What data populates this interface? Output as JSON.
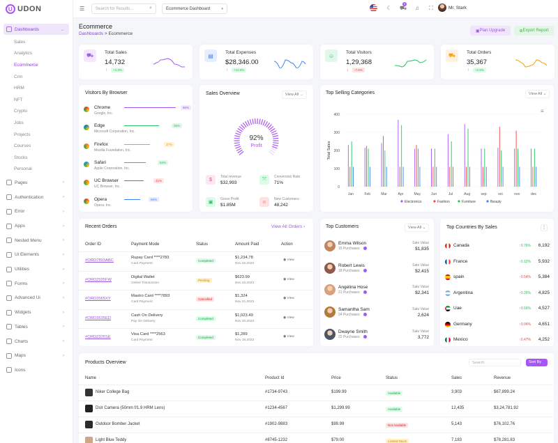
{
  "brand": "UDON",
  "sidebar": {
    "dashboards": "Dashboards",
    "sub": [
      "Sales",
      "Analytics",
      "Ecommerce",
      "Crm",
      "HRM",
      "NFT",
      "Crypto",
      "Jobs",
      "Projects",
      "Courses",
      "Stocks",
      "Personal"
    ],
    "groups": [
      "Pages",
      "Authentication",
      "Error",
      "Apps",
      "Nested Menu",
      "Ui Elements",
      "Utilities",
      "Forms",
      "Advanced Ui",
      "Widgets",
      "Tables",
      "Charts",
      "Maps",
      "Icons"
    ]
  },
  "topbar": {
    "search_placeholder": "Search for Results...",
    "dashboard_select": "Ecommerce Dashboard",
    "cart_count": "5",
    "user": "Mr. Stark"
  },
  "page": {
    "title": "Ecommerce",
    "crumb_root": "Dashboards",
    "crumb_sep": ">",
    "crumb_current": "Ecommerce",
    "plan_upgrade": "Plan Upgrade",
    "export_report": "Export Report"
  },
  "kpis": [
    {
      "label": "Total Sales",
      "value": "14,732",
      "pct": "+4.3%",
      "dir": "↑",
      "accent": "#a855f7"
    },
    {
      "label": "Total Expenses",
      "value": "$28,346.00",
      "pct": "+12.0%",
      "dir": "↑",
      "accent": "#3b82f6"
    },
    {
      "label": "Total Visitors",
      "value": "1,29,368",
      "pct": "-7.6%",
      "dir": "↓",
      "accent": "#22c55e"
    },
    {
      "label": "Total Orders",
      "value": "35,367",
      "pct": "+2.5%",
      "dir": "↑",
      "accent": "#f59e0b"
    }
  ],
  "browsers": {
    "title": "Visitors By Browser",
    "items": [
      {
        "name": "Chrome",
        "company": "Google, Inc.",
        "pct": "86%",
        "color": "#a855f7"
      },
      {
        "name": "Edge",
        "company": "Microsoft Corporation, Inc.",
        "pct": "36%",
        "color": "#22c55e"
      },
      {
        "name": "Firefox",
        "company": "Mozilla Foundation, Inc.",
        "pct": "37%",
        "color": "#f59e0b"
      },
      {
        "name": "Safari",
        "company": "Apple Corporation, Inc.",
        "pct": "53%",
        "color": "#22c55e"
      },
      {
        "name": "UC Browser",
        "company": "UC Browser, Inc.",
        "pct": "41%",
        "color": "#ef4444"
      },
      {
        "name": "Opera",
        "company": "Opera, Inc.",
        "pct": "56%",
        "color": "#3b82f6"
      }
    ]
  },
  "sales_overview": {
    "title": "Sales Overview",
    "view_all": "View All",
    "gauge_value": "92%",
    "gauge_label": "Profit",
    "stats": [
      {
        "label": "Total revenue",
        "value": "$32,993"
      },
      {
        "label": "Conversion Rate",
        "value": "71%"
      },
      {
        "label": "Gross Profit",
        "value": "$1.85M"
      },
      {
        "label": "New Customers",
        "value": "48,242"
      }
    ]
  },
  "chart_data": {
    "type": "bar",
    "title": "Top Selling Categories",
    "ylabel": "Total Sales",
    "ylim": [
      0,
      400
    ],
    "yticks": [
      "400",
      "300",
      "200",
      "100",
      "0"
    ],
    "categories": [
      "Jan",
      "Feb",
      "Mar",
      "Apr",
      "May",
      "Jun",
      "Jul",
      "Aug",
      "sep",
      "oct",
      "nov",
      "dec"
    ],
    "series": [
      {
        "name": "Electronics",
        "color": "#a855f7",
        "values": [
          230,
          215,
          240,
          370,
          210,
          210,
          290,
          345,
          210,
          215,
          210,
          210
        ]
      },
      {
        "name": "Fashion",
        "color": "#ef4444",
        "values": [
          110,
          225,
          280,
          110,
          230,
          110,
          110,
          110,
          110,
          330,
          310,
          110
        ]
      },
      {
        "name": "Furniture",
        "color": "#22c55e",
        "values": [
          250,
          210,
          200,
          340,
          210,
          210,
          250,
          320,
          210,
          200,
          210,
          210
        ]
      },
      {
        "name": "Beauty",
        "color": "#3b82f6",
        "values": [
          110,
          110,
          110,
          110,
          110,
          110,
          110,
          110,
          110,
          110,
          110,
          110
        ]
      }
    ],
    "view_all": "View All"
  },
  "orders": {
    "title": "Recent Orders",
    "view_all": "View All Orders",
    "headers": [
      "Order ID",
      "Payment Mode",
      "Status",
      "Amount Paid",
      "Action"
    ],
    "rows": [
      {
        "id": "#ORD7893ABC",
        "mode": "Rupay Card ****2783",
        "mode_sub": "Card Payment",
        "status": "Completed",
        "amount": "$1,234.78",
        "date": "Nov 22,2023",
        "action": "View"
      },
      {
        "id": "#ORD2535FW",
        "mode": "Digital Wallet",
        "mode_sub": "Online Transaction",
        "status": "Pending",
        "amount": "$623.99",
        "date": "Nov 22,2023",
        "action": "View"
      },
      {
        "id": "#ORD3565XY",
        "mode": "Mastro Card ****7893",
        "mode_sub": "Card Payment",
        "status": "Cancelled",
        "amount": "$1,324",
        "date": "Nov 21,2023",
        "action": "View"
      },
      {
        "id": "#ORD3635ED",
        "mode": "Cash On Delivery",
        "mode_sub": "Pay On Delivery",
        "status": "Completed",
        "amount": "$1,023.49",
        "date": "Nov 20,2023",
        "action": "View"
      },
      {
        "id": "#ORD2326SE",
        "mode": "Visa Card ****2563",
        "mode_sub": "Card Payment",
        "status": "Completed",
        "amount": "$1,289",
        "date": "Nov 18,2023",
        "action": "View"
      }
    ]
  },
  "customers": {
    "title": "Top Customers",
    "view_all": "View All",
    "items": [
      {
        "name": "Emma Wilson",
        "purchases": "15 Purchases",
        "label": "Sale Value",
        "value": "$1,835"
      },
      {
        "name": "Robert Lewis",
        "purchases": "18 Purchases",
        "label": "Sale Value",
        "value": "$2,415"
      },
      {
        "name": "Angelina Hose",
        "purchases": "21 Purchases",
        "label": "Sale Value",
        "value": "$2,341"
      },
      {
        "name": "Samantha Sam",
        "purchases": "24 Purchases",
        "label": "Sale Value",
        "value": "2,624"
      },
      {
        "name": "Dwayne Smith",
        "purchases": "22 Purchases",
        "label": "Sale Value",
        "value": "3,772"
      }
    ]
  },
  "countries": {
    "title": "Top Countries By Sales",
    "items": [
      {
        "name": "Canada",
        "pct": "↑0.76%",
        "value": "6,192",
        "up": true
      },
      {
        "name": "France",
        "pct": "↑0.12%",
        "value": "5,932",
        "up": true
      },
      {
        "name": "spain",
        "pct": "↑0.54%",
        "value": "5,384",
        "up": false
      },
      {
        "name": "Argentina",
        "pct": "↑0.25%",
        "value": "4,825",
        "up": true
      },
      {
        "name": "Uae",
        "pct": "↑0.56%",
        "value": "4,527",
        "up": true
      },
      {
        "name": "Germany",
        "pct": "↑0.04%",
        "value": "4,651",
        "up": false
      },
      {
        "name": "Mexico",
        "pct": "↑0.47%",
        "value": "4,252",
        "up": false
      }
    ]
  },
  "products": {
    "title": "Products Overview",
    "search_placeholder": "Search",
    "sort": "Sort By",
    "headers": [
      "Name",
      "Product Id",
      "Price",
      "Status",
      "Sales",
      "Revenue"
    ],
    "rows": [
      {
        "name": "Niker College Bag",
        "id": "#1734-9743",
        "price": "$199.99",
        "status": "Available",
        "sales": "3,903",
        "revenue": "$67,899.24"
      },
      {
        "name": "Dslr Camera (50mm f/1.9 HRM Lens)",
        "id": "#1234-4567",
        "price": "$1,299.99",
        "status": "Available",
        "sales": "12,435",
        "revenue": "$3,24,781.92"
      },
      {
        "name": "Outdoor Bomber Jacket",
        "id": "#1902-9883",
        "price": "$99.99",
        "status": "Not Available",
        "sales": "5,143",
        "revenue": "$76,102.76"
      },
      {
        "name": "Light Blue Teddy",
        "id": "#8745-1232",
        "price": "$79.00",
        "status": "Limited Stock",
        "sales": "7,183",
        "revenue": "$78,281.83"
      }
    ]
  }
}
